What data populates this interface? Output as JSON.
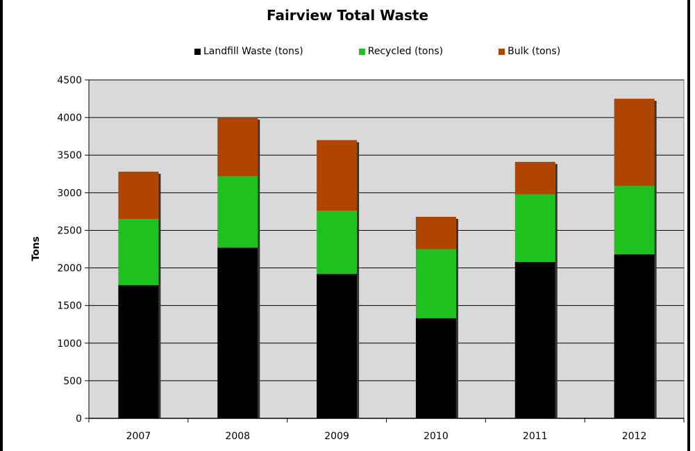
{
  "chart_data": {
    "type": "bar",
    "stacked": true,
    "title": "Fairview Total Waste",
    "xlabel": "",
    "ylabel": "Tons",
    "categories": [
      "2007",
      "2008",
      "2009",
      "2010",
      "2011",
      "2012"
    ],
    "series": [
      {
        "name": "Landfill Waste (tons)",
        "color": "#000000",
        "values": [
          1770,
          2270,
          1920,
          1330,
          2080,
          2180
        ]
      },
      {
        "name": "Recycled (tons)",
        "color": "#1ec11e",
        "values": [
          880,
          950,
          840,
          920,
          900,
          910
        ]
      },
      {
        "name": "Bulk (tons)",
        "color": "#b04500",
        "values": [
          630,
          780,
          940,
          430,
          430,
          1160
        ]
      }
    ],
    "ylim": [
      0,
      4500
    ],
    "yticks": [
      0,
      500,
      1000,
      1500,
      2000,
      2500,
      3000,
      3500,
      4000,
      4500
    ],
    "grid": true,
    "legend_position": "top",
    "plot_background": "#d9d9d9"
  }
}
